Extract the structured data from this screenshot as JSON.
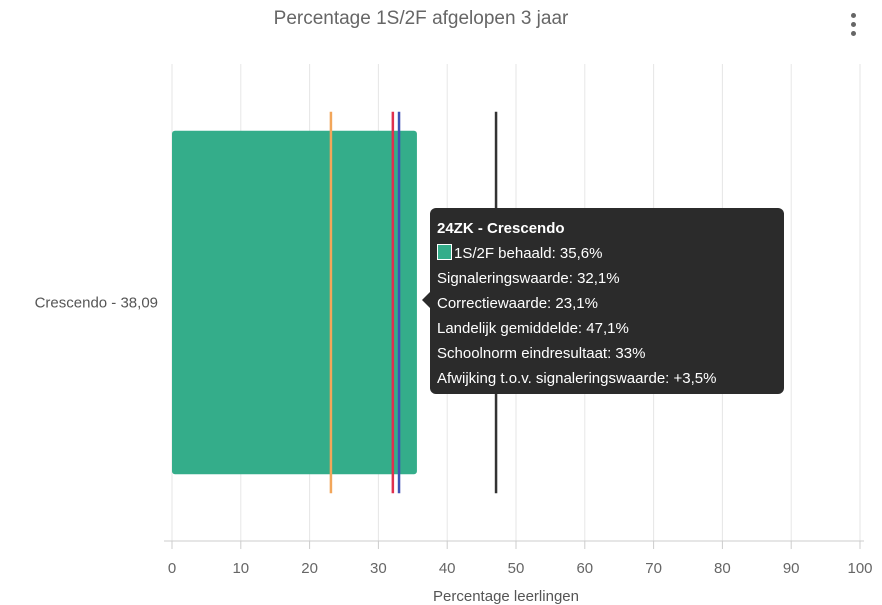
{
  "chart_data": {
    "type": "bar",
    "orientation": "horizontal",
    "title": "Percentage 1S/2F afgelopen 3 jaar",
    "xlabel": "Percentage leerlingen",
    "ylabel": "",
    "xlim": [
      0,
      100
    ],
    "xticks": [
      "0",
      "10",
      "20",
      "30",
      "40",
      "50",
      "60",
      "70",
      "80",
      "90",
      "100"
    ],
    "categories": [
      "Crescendo - 38,09"
    ],
    "series": [
      {
        "values": [
          35.6
        ],
        "color": "#34ad8a"
      }
    ],
    "reference_lines": [
      {
        "value": 23.1,
        "color": "#f2a65a"
      },
      {
        "value": 32.1,
        "color": "#e0304e"
      },
      {
        "value": 33,
        "color": "#3f51b5"
      },
      {
        "value": 47.1,
        "color": "#333333"
      }
    ],
    "grid": true,
    "legend": "none",
    "tooltip": {
      "title": "24ZK - Crescendo",
      "lines": [
        "1S/2F behaald: 35,6%",
        "Signaleringswaarde: 32,1%",
        "Correctiewaarde: 23,1%",
        "Landelijk gemiddelde: 47,1%",
        "Schoolnorm eindresultaat: 33%",
        "Afwijking t.o.v. signaleringswaarde: +3,5%"
      ]
    }
  },
  "menu": {
    "icon": "kebab-menu-icon"
  }
}
